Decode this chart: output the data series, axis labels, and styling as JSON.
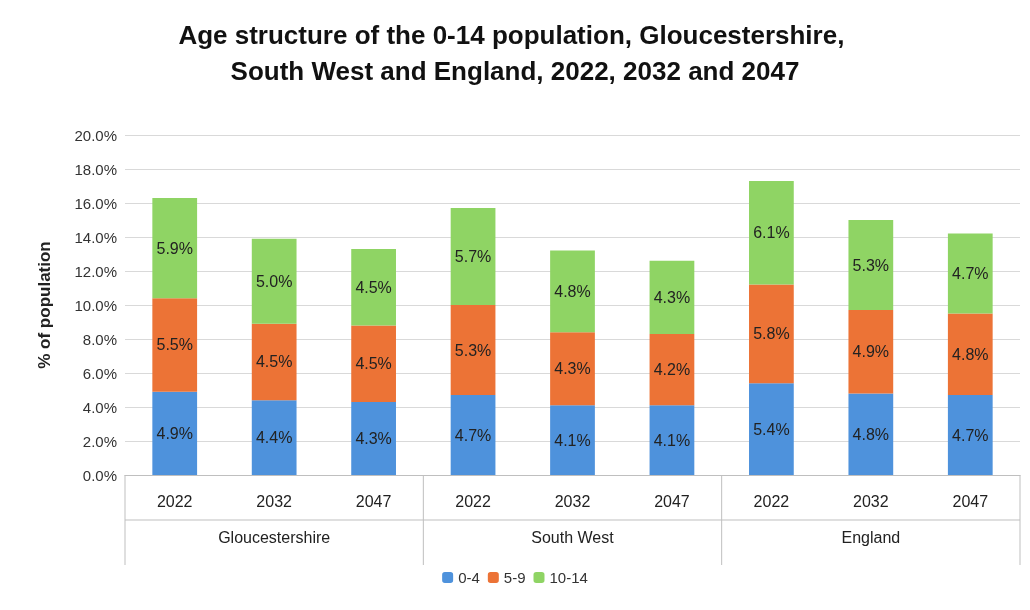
{
  "chart_data": {
    "type": "bar",
    "stacked": true,
    "title": "Age structure of the 0-14 population, Gloucestershire, South West and England, 2022, 2032 and 2047",
    "ylabel": "% of population",
    "categories": [
      "2022",
      "2032",
      "2047",
      "2022",
      "2032",
      "2047",
      "2022",
      "2032",
      "2047"
    ],
    "annotations": [
      "Gloucestershire",
      "South West",
      "England"
    ],
    "series": [
      {
        "name": "0-4",
        "color": "#4e92dc",
        "values": [
          4.9,
          4.4,
          4.3,
          4.7,
          4.1,
          4.1,
          5.4,
          4.8,
          4.7
        ],
        "value_labels": [
          "4.9%",
          "4.4%",
          "4.3%",
          "4.7%",
          "4.1%",
          "4.1%",
          "5.4%",
          "4.8%",
          "4.7%"
        ]
      },
      {
        "name": "5-9",
        "color": "#ec7336",
        "values": [
          5.5,
          4.5,
          4.5,
          5.3,
          4.3,
          4.2,
          5.8,
          4.9,
          4.8
        ],
        "value_labels": [
          "5.5%",
          "4.5%",
          "4.5%",
          "5.3%",
          "4.3%",
          "4.2%",
          "5.8%",
          "4.9%",
          "4.8%"
        ]
      },
      {
        "name": "10-14",
        "color": "#8fd464",
        "values": [
          5.9,
          5.0,
          4.5,
          5.7,
          4.8,
          4.3,
          6.1,
          5.3,
          4.7
        ],
        "value_labels": [
          "5.9%",
          "5.0%",
          "4.5%",
          "5.7%",
          "4.8%",
          "4.3%",
          "6.1%",
          "5.3%",
          "4.7%"
        ]
      }
    ],
    "ylim": [
      0,
      20
    ],
    "yticks": [
      {
        "value": 0,
        "label": "0.0%"
      },
      {
        "value": 2,
        "label": "2.0%"
      },
      {
        "value": 4,
        "label": "4.0%"
      },
      {
        "value": 6,
        "label": "6.0%"
      },
      {
        "value": 8,
        "label": "8.0%"
      },
      {
        "value": 10,
        "label": "10.0%"
      },
      {
        "value": 12,
        "label": "12.0%"
      },
      {
        "value": 14,
        "label": "14.0%"
      },
      {
        "value": 16,
        "label": "16.0%"
      },
      {
        "value": 18,
        "label": "18.0%"
      },
      {
        "value": 20,
        "label": "20.0%"
      }
    ],
    "grid": "y",
    "legend": "bottom"
  }
}
